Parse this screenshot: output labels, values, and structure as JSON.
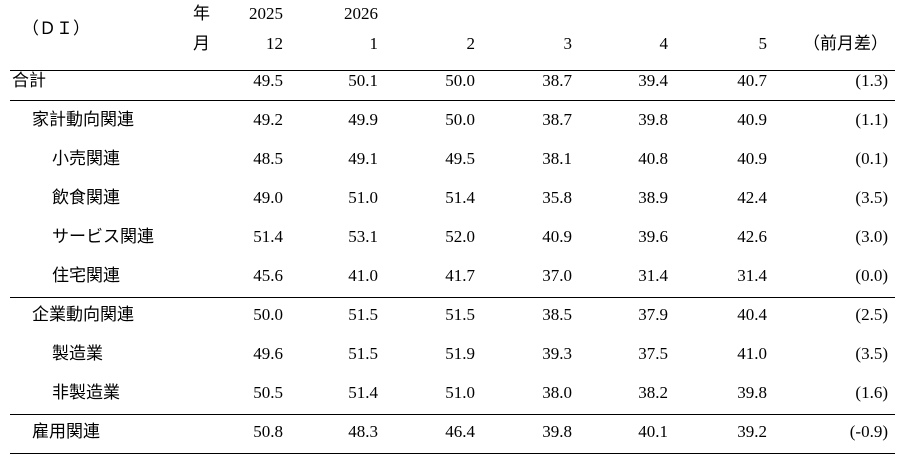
{
  "header": {
    "unit": "（ＤＩ）",
    "year_label": "年",
    "month_label": "月",
    "years": [
      "2025",
      "2026"
    ],
    "months": [
      "12",
      "1",
      "2",
      "3",
      "4",
      "5"
    ],
    "diff": "（前月差）"
  },
  "table": {
    "total": {
      "label": "合計",
      "values": [
        "49.5",
        "50.1",
        "50.0",
        "38.7",
        "39.4",
        "40.7"
      ],
      "diff": "(1.3)"
    },
    "sections": [
      {
        "head": {
          "label": "家計動向関連",
          "values": [
            "49.2",
            "49.9",
            "50.0",
            "38.7",
            "39.8",
            "40.9"
          ],
          "diff": "(1.1)"
        },
        "items": [
          {
            "label": "小売関連",
            "values": [
              "48.5",
              "49.1",
              "49.5",
              "38.1",
              "40.8",
              "40.9"
            ],
            "diff": "(0.1)"
          },
          {
            "label": "飲食関連",
            "values": [
              "49.0",
              "51.0",
              "51.4",
              "35.8",
              "38.9",
              "42.4"
            ],
            "diff": "(3.5)"
          },
          {
            "label": "サービス関連",
            "values": [
              "51.4",
              "53.1",
              "52.0",
              "40.9",
              "39.6",
              "42.6"
            ],
            "diff": "(3.0)"
          },
          {
            "label": "住宅関連",
            "values": [
              "45.6",
              "41.0",
              "41.7",
              "37.0",
              "31.4",
              "31.4"
            ],
            "diff": "(0.0)"
          }
        ]
      },
      {
        "head": {
          "label": "企業動向関連",
          "values": [
            "50.0",
            "51.5",
            "51.5",
            "38.5",
            "37.9",
            "40.4"
          ],
          "diff": "(2.5)"
        },
        "items": [
          {
            "label": "製造業",
            "values": [
              "49.6",
              "51.5",
              "51.9",
              "39.3",
              "37.5",
              "41.0"
            ],
            "diff": "(3.5)"
          },
          {
            "label": "非製造業",
            "values": [
              "50.5",
              "51.4",
              "51.0",
              "38.0",
              "38.2",
              "39.8"
            ],
            "diff": "(1.6)"
          }
        ]
      },
      {
        "head": {
          "label": "雇用関連",
          "values": [
            "50.8",
            "48.3",
            "46.4",
            "39.8",
            "40.1",
            "39.2"
          ],
          "diff": "(-0.9)"
        },
        "items": []
      }
    ]
  }
}
